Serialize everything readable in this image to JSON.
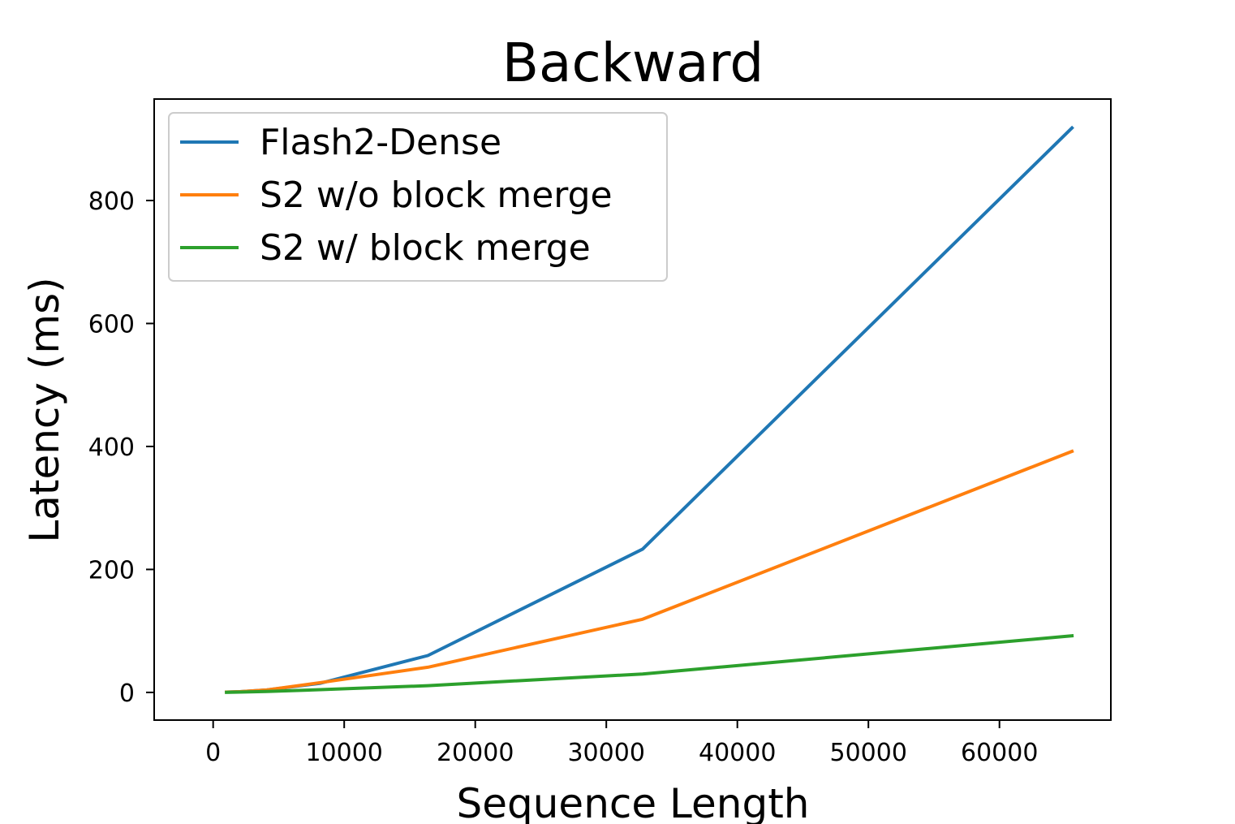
{
  "chart_data": {
    "type": "line",
    "title": "Backward",
    "xlabel": "Sequence Length",
    "ylabel": "Latency (ms)",
    "xlim": [
      -4500,
      68500
    ],
    "ylim": [
      -45,
      965
    ],
    "xticks": [
      0,
      10000,
      20000,
      30000,
      40000,
      50000,
      60000
    ],
    "yticks": [
      0,
      200,
      400,
      600,
      800
    ],
    "grid": false,
    "legend_position": "top-left",
    "series": [
      {
        "name": "Flash2-Dense",
        "color": "#1f77b4",
        "x": [
          1024,
          2048,
          4096,
          8192,
          16384,
          32768,
          65536
        ],
        "y": [
          0.5,
          1.2,
          4,
          15,
          60,
          233,
          918
        ]
      },
      {
        "name": "S2 w/o block merge",
        "color": "#ff7f0e",
        "x": [
          1024,
          2048,
          4096,
          8192,
          16384,
          32768,
          65536
        ],
        "y": [
          0.5,
          1.2,
          4,
          16,
          41,
          119,
          392
        ]
      },
      {
        "name": "S2 w/ block merge",
        "color": "#2ca02c",
        "x": [
          1024,
          2048,
          4096,
          8192,
          16384,
          32768,
          65536
        ],
        "y": [
          0.2,
          0.6,
          1.5,
          4.5,
          11,
          30,
          92
        ]
      }
    ]
  }
}
